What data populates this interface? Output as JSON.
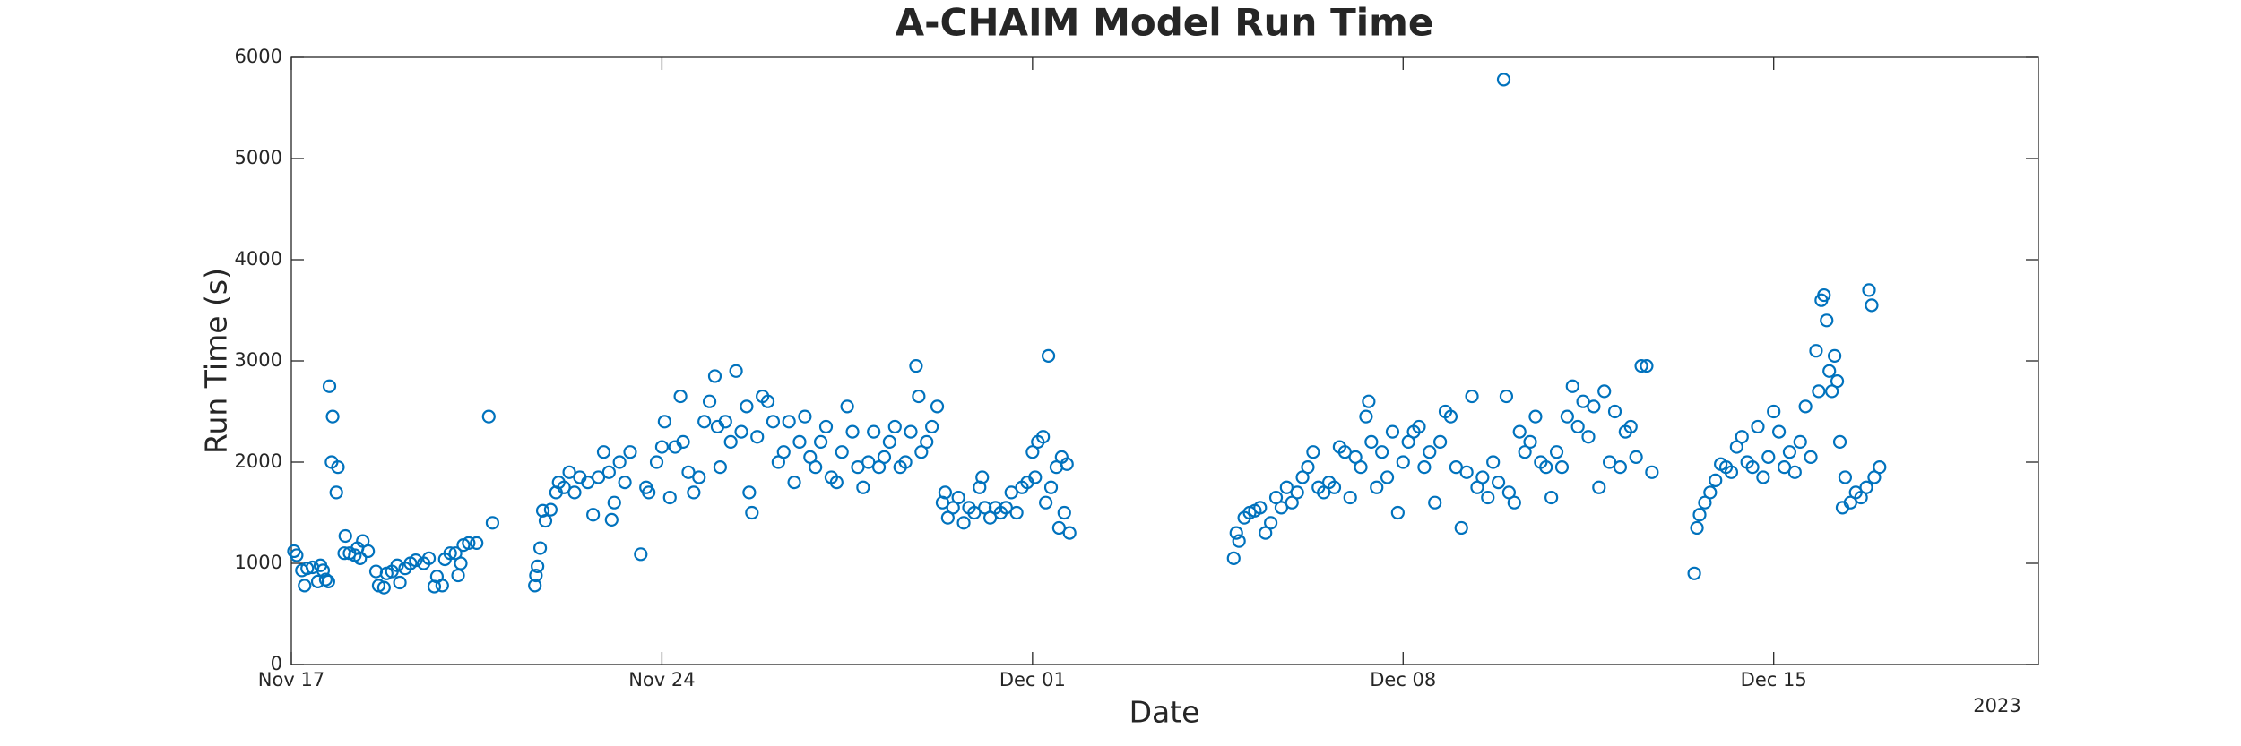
{
  "chart_data": {
    "type": "scatter",
    "title": "A-CHAIM Model Run Time",
    "x_label": "Date",
    "y_label": "Run Time (s)",
    "x_year_label": "2023",
    "color": "#0072BD",
    "xlim": [
      0,
      33
    ],
    "xticks": [
      {
        "value": 0,
        "label": "Nov 17"
      },
      {
        "value": 7,
        "label": "Nov 24"
      },
      {
        "value": 14,
        "label": "Dec 01"
      },
      {
        "value": 21,
        "label": "Dec 08"
      },
      {
        "value": 28,
        "label": "Dec 15"
      }
    ],
    "ylim": [
      0,
      6000
    ],
    "yticks": [
      0,
      1000,
      2000,
      3000,
      4000,
      5000,
      6000
    ],
    "x": [
      0.05,
      0.1,
      0.2,
      0.25,
      0.3,
      0.4,
      0.5,
      0.55,
      0.6,
      0.65,
      0.7,
      0.72,
      0.76,
      0.78,
      0.85,
      0.88,
      1.0,
      1.02,
      1.1,
      1.2,
      1.25,
      1.3,
      1.35,
      1.45,
      1.6,
      1.65,
      1.75,
      1.8,
      1.9,
      2.0,
      2.05,
      2.15,
      2.25,
      2.35,
      2.5,
      2.6,
      2.7,
      2.75,
      2.85,
      2.9,
      3.0,
      3.1,
      3.15,
      3.2,
      3.25,
      3.35,
      3.5,
      3.73,
      3.8,
      4.6,
      4.62,
      4.65,
      4.7,
      4.75,
      4.8,
      4.9,
      5.0,
      5.05,
      5.15,
      5.25,
      5.35,
      5.45,
      5.6,
      5.7,
      5.8,
      5.9,
      6.0,
      6.05,
      6.1,
      6.2,
      6.3,
      6.4,
      6.6,
      6.7,
      6.75,
      6.9,
      7.0,
      7.05,
      7.15,
      7.25,
      7.35,
      7.4,
      7.5,
      7.6,
      7.7,
      7.8,
      7.9,
      8.0,
      8.05,
      8.1,
      8.2,
      8.3,
      8.4,
      8.5,
      8.6,
      8.65,
      8.7,
      8.8,
      8.9,
      9.0,
      9.1,
      9.2,
      9.3,
      9.4,
      9.5,
      9.6,
      9.7,
      9.8,
      9.9,
      10.0,
      10.1,
      10.2,
      10.3,
      10.4,
      10.5,
      10.6,
      10.7,
      10.8,
      10.9,
      11.0,
      11.1,
      11.2,
      11.3,
      11.4,
      11.5,
      11.6,
      11.7,
      11.8,
      11.85,
      11.9,
      12.0,
      12.1,
      12.2,
      12.3,
      12.35,
      12.4,
      12.5,
      12.6,
      12.7,
      12.8,
      12.9,
      13.0,
      13.05,
      13.1,
      13.2,
      13.3,
      13.4,
      13.5,
      13.6,
      13.7,
      13.8,
      13.9,
      14.0,
      14.05,
      14.1,
      14.2,
      14.25,
      14.3,
      14.35,
      14.45,
      14.5,
      14.55,
      14.6,
      14.65,
      14.7,
      17.8,
      17.85,
      17.9,
      18.0,
      18.1,
      18.2,
      18.3,
      18.4,
      18.5,
      18.6,
      18.7,
      18.8,
      18.9,
      19.0,
      19.1,
      19.2,
      19.3,
      19.4,
      19.5,
      19.6,
      19.7,
      19.8,
      19.9,
      20.0,
      20.1,
      20.2,
      20.3,
      20.35,
      20.4,
      20.5,
      20.6,
      20.7,
      20.8,
      20.9,
      21.0,
      21.1,
      21.2,
      21.3,
      21.4,
      21.5,
      21.6,
      21.7,
      21.8,
      21.9,
      22.0,
      22.1,
      22.2,
      22.3,
      22.4,
      22.5,
      22.6,
      22.7,
      22.8,
      22.9,
      22.95,
      23.0,
      23.1,
      23.2,
      23.3,
      23.4,
      23.5,
      23.6,
      23.7,
      23.8,
      23.9,
      24.0,
      24.1,
      24.2,
      24.3,
      24.4,
      24.5,
      24.6,
      24.7,
      24.8,
      24.9,
      25.0,
      25.1,
      25.2,
      25.3,
      25.4,
      25.5,
      25.6,
      25.7,
      26.5,
      26.55,
      26.6,
      26.7,
      26.8,
      26.9,
      27.0,
      27.1,
      27.2,
      27.3,
      27.4,
      27.5,
      27.6,
      27.7,
      27.8,
      27.9,
      28.0,
      28.1,
      28.2,
      28.3,
      28.4,
      28.5,
      28.6,
      28.7,
      28.8,
      28.85,
      28.9,
      28.95,
      29.0,
      29.05,
      29.1,
      29.15,
      29.2,
      29.25,
      29.3,
      29.35,
      29.45,
      29.55,
      29.65,
      29.75,
      29.8,
      29.85,
      29.9,
      30.0
    ],
    "values": [
      1120,
      1080,
      930,
      780,
      950,
      960,
      820,
      980,
      930,
      840,
      820,
      2750,
      2000,
      2450,
      1700,
      1950,
      1100,
      1270,
      1100,
      1080,
      1150,
      1050,
      1220,
      1120,
      920,
      780,
      760,
      900,
      920,
      980,
      810,
      950,
      1000,
      1030,
      1000,
      1050,
      770,
      870,
      780,
      1040,
      1100,
      1100,
      880,
      1000,
      1180,
      1200,
      1200,
      2450,
      1400,
      780,
      880,
      970,
      1150,
      1520,
      1420,
      1530,
      1700,
      1800,
      1750,
      1900,
      1700,
      1850,
      1800,
      1480,
      1850,
      2100,
      1900,
      1430,
      1600,
      2000,
      1800,
      2100,
      1090,
      1750,
      1700,
      2000,
      2150,
      2400,
      1650,
      2150,
      2650,
      2200,
      1900,
      1700,
      1850,
      2400,
      2600,
      2850,
      2350,
      1950,
      2400,
      2200,
      2900,
      2300,
      2550,
      1700,
      1500,
      2250,
      2650,
      2600,
      2400,
      2000,
      2100,
      2400,
      1800,
      2200,
      2450,
      2050,
      1950,
      2200,
      2350,
      1850,
      1800,
      2100,
      2550,
      2300,
      1950,
      1750,
      2000,
      2300,
      1950,
      2050,
      2200,
      2350,
      1950,
      2000,
      2300,
      2950,
      2650,
      2100,
      2200,
      2350,
      2550,
      1600,
      1700,
      1450,
      1550,
      1650,
      1400,
      1550,
      1500,
      1750,
      1850,
      1550,
      1450,
      1550,
      1500,
      1550,
      1700,
      1500,
      1750,
      1800,
      2100,
      1850,
      2200,
      2250,
      1600,
      3050,
      1750,
      1950,
      1350,
      2050,
      1500,
      1980,
      1300,
      1050,
      1300,
      1220,
      1450,
      1500,
      1520,
      1550,
      1300,
      1400,
      1650,
      1550,
      1750,
      1600,
      1700,
      1850,
      1950,
      2100,
      1750,
      1700,
      1800,
      1750,
      2150,
      2100,
      1650,
      2050,
      1950,
      2450,
      2600,
      2200,
      1750,
      2100,
      1850,
      2300,
      1500,
      2000,
      2200,
      2300,
      2350,
      1950,
      2100,
      1600,
      2200,
      2500,
      2450,
      1950,
      1350,
      1900,
      2650,
      1750,
      1850,
      1650,
      2000,
      1800,
      5780,
      2650,
      1700,
      1600,
      2300,
      2100,
      2200,
      2450,
      2000,
      1950,
      1650,
      2100,
      1950,
      2450,
      2750,
      2350,
      2600,
      2250,
      2550,
      1750,
      2700,
      2000,
      2500,
      1950,
      2300,
      2350,
      2050,
      2950,
      2950,
      1900,
      900,
      1350,
      1480,
      1600,
      1700,
      1820,
      1980,
      1950,
      1900,
      2150,
      2250,
      2000,
      1950,
      2350,
      1850,
      2050,
      2500,
      2300,
      1950,
      2100,
      1900,
      2200,
      2550,
      2050,
      3100,
      2700,
      3600,
      3650,
      3400,
      2900,
      2700,
      3050,
      2800,
      2200,
      1550,
      1850,
      1600,
      1700,
      1650,
      1750,
      3700,
      3550,
      1850,
      1950
    ]
  }
}
